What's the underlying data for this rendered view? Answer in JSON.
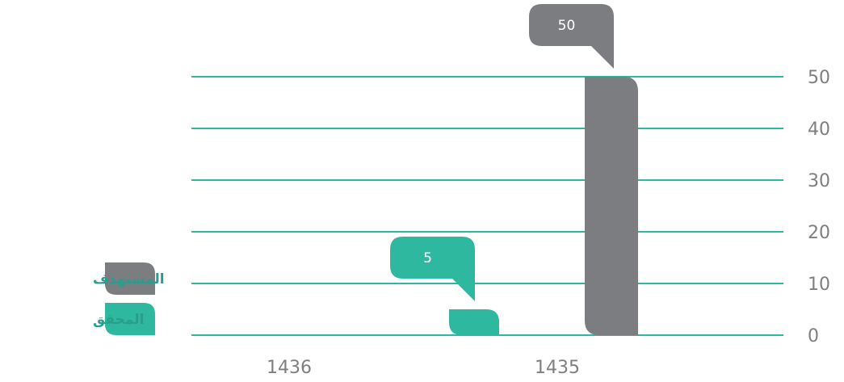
{
  "chart_data": {
    "type": "bar",
    "categories": [
      "1435",
      "1436"
    ],
    "series": [
      {
        "name": "المستهدف",
        "color": "#7b7d80",
        "values": [
          50,
          null
        ]
      },
      {
        "name": "المحقق",
        "color": "#2fb8a0",
        "values": [
          5,
          null
        ]
      }
    ],
    "ylim": [
      0,
      50
    ],
    "yticks": [
      0,
      10,
      20,
      30,
      40,
      50
    ],
    "data_labels": [
      {
        "series": "المستهدف",
        "category": "1435",
        "text": "50"
      },
      {
        "series": "المحقق",
        "category": "1435",
        "text": "5"
      }
    ],
    "grid": true,
    "gridline_color": "#2fb8a0",
    "axis_text_color": "#7f7f7f",
    "legend_text_color": "#2a9d8f",
    "legend_position": "left"
  }
}
